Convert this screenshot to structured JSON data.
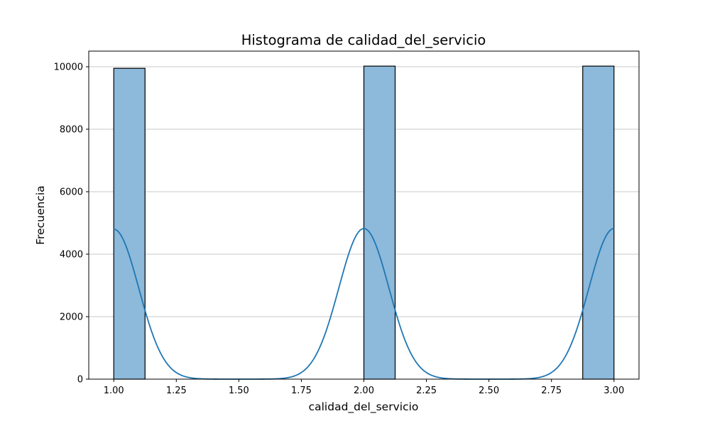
{
  "chart_data": {
    "type": "bar",
    "title": "Histograma de calidad_del_servicio",
    "xlabel": "calidad_del_servicio",
    "ylabel": "Frecuencia",
    "xlim": [
      0.9,
      3.1
    ],
    "ylim": [
      0,
      10500
    ],
    "x_ticks": [
      "1.00",
      "1.25",
      "1.50",
      "1.75",
      "2.00",
      "2.25",
      "2.50",
      "2.75",
      "3.00"
    ],
    "y_ticks": [
      "0",
      "2000",
      "4000",
      "6000",
      "8000",
      "10000"
    ],
    "grid": "horizontal",
    "bins": [
      {
        "x0": 1.0,
        "x1": 1.125,
        "count": 9950
      },
      {
        "x0": 2.0,
        "x1": 2.125,
        "count": 10020
      },
      {
        "x0": 2.875,
        "x1": 3.0,
        "count": 10020
      }
    ],
    "kde": {
      "peaks": [
        {
          "x": 1.0,
          "y": 4800
        },
        {
          "x": 2.0,
          "y": 4820
        },
        {
          "x": 3.0,
          "y": 4820
        }
      ],
      "sigma": 0.1
    },
    "colors": {
      "bar_fill": "#8db9da",
      "bar_edge": "#000000",
      "kde_line": "#1f77b4",
      "grid": "#c8c8c8"
    }
  }
}
